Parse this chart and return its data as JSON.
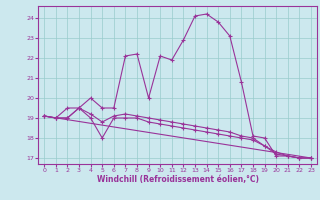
{
  "xlabel": "Windchill (Refroidissement éolien,°C)",
  "bg_color": "#cce8ee",
  "line_color": "#993399",
  "grid_color": "#99cccc",
  "xlim": [
    -0.5,
    23.5
  ],
  "ylim": [
    16.7,
    24.6
  ],
  "yticks": [
    17,
    18,
    19,
    20,
    21,
    22,
    23,
    24
  ],
  "xticks": [
    0,
    1,
    2,
    3,
    4,
    5,
    6,
    7,
    8,
    9,
    10,
    11,
    12,
    13,
    14,
    15,
    16,
    17,
    18,
    19,
    20,
    21,
    22,
    23
  ],
  "series1_x": [
    0,
    1,
    2,
    3,
    4,
    5,
    6,
    7,
    8,
    9,
    10,
    11,
    12,
    13,
    14,
    15,
    16,
    17,
    18,
    19,
    20,
    21,
    22,
    23
  ],
  "series1_y": [
    19.1,
    19.0,
    19.5,
    19.5,
    20.0,
    19.5,
    19.5,
    22.1,
    22.2,
    20.0,
    22.1,
    21.9,
    22.9,
    24.1,
    24.2,
    23.8,
    23.1,
    20.8,
    18.1,
    18.0,
    17.1,
    17.1,
    17.0,
    17.0
  ],
  "series2_x": [
    0,
    1,
    2,
    3,
    4,
    5,
    6,
    7,
    8,
    9,
    10,
    11,
    12,
    13,
    14,
    15,
    16,
    17,
    18,
    19,
    20,
    21,
    22,
    23
  ],
  "series2_y": [
    19.1,
    19.0,
    19.0,
    19.5,
    19.2,
    18.8,
    19.1,
    19.2,
    19.1,
    19.0,
    18.9,
    18.8,
    18.7,
    18.6,
    18.5,
    18.4,
    18.3,
    18.1,
    18.0,
    17.6,
    17.2,
    17.1,
    17.0,
    17.0
  ],
  "series3_x": [
    0,
    23
  ],
  "series3_y": [
    19.1,
    17.0
  ],
  "series4_x": [
    0,
    1,
    2,
    3,
    4,
    5,
    6,
    7,
    8,
    9,
    10,
    11,
    12,
    13,
    14,
    15,
    16,
    17,
    18,
    19,
    20,
    21,
    22,
    23
  ],
  "series4_y": [
    19.1,
    19.0,
    19.0,
    19.5,
    19.0,
    18.0,
    19.0,
    19.0,
    19.0,
    18.8,
    18.7,
    18.6,
    18.5,
    18.4,
    18.3,
    18.2,
    18.1,
    18.0,
    17.9,
    17.6,
    17.3,
    17.1,
    17.0,
    17.0
  ]
}
